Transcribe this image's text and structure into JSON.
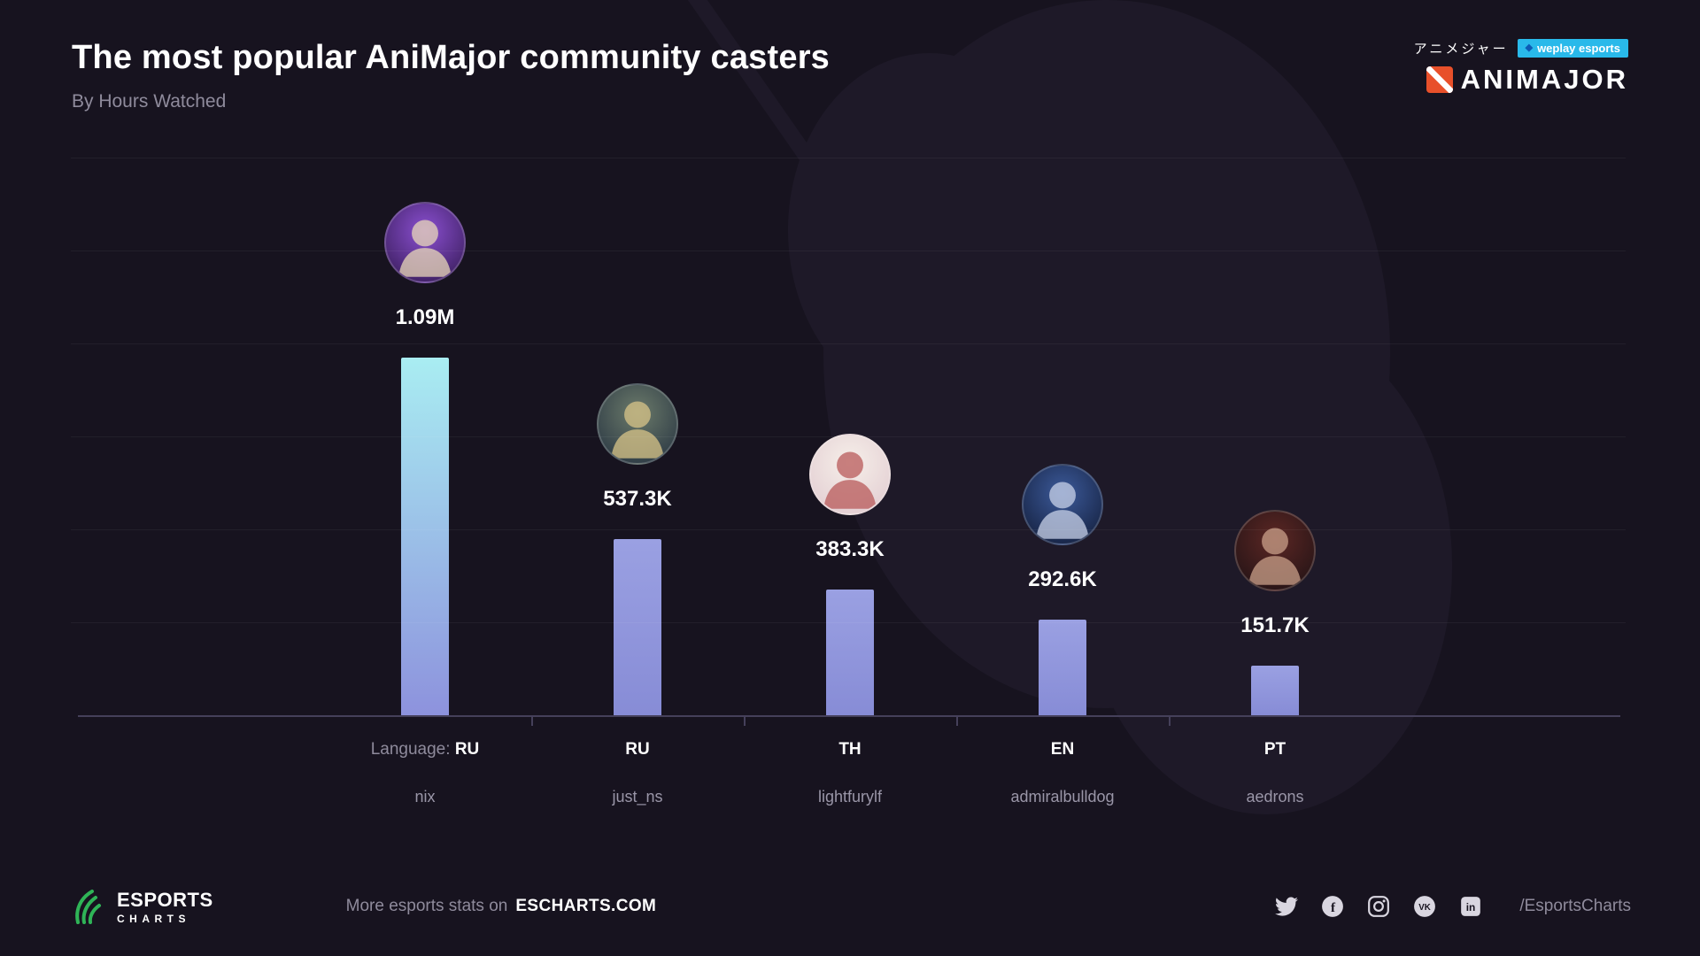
{
  "header": {
    "title": "The most popular AniMajor community casters",
    "subtitle": "By Hours Watched"
  },
  "branding": {
    "jp_text": "アニメジャー",
    "weplay_badge": "weplay esports",
    "animajor": "ANIMAJOR"
  },
  "colors": {
    "background": "#17131f",
    "accent_cyan": "#29b9ea",
    "animajor_orange": "#e8502a",
    "esports_green": "#2fb457",
    "bar_leader_top": "#a9edf2",
    "bar_leader_bottom": "#8d92dd",
    "bar_top": "#9aa0e2",
    "bar_bottom": "#878cd6",
    "axis_line": "#45405a",
    "text_muted": "#8f8b9c"
  },
  "chart_data": {
    "type": "bar",
    "title": "The most popular AniMajor community casters",
    "subtitle": "By Hours Watched",
    "ylabel": "Hours Watched",
    "ylim": [
      0,
      1090000
    ],
    "grid": "horizontal, faint",
    "legend": "none",
    "language_prefix": "Language:",
    "categories": [
      "nix",
      "just_ns",
      "lightfurylf",
      "admiralbulldog",
      "aedrons"
    ],
    "values": [
      1090000,
      537300,
      383300,
      292600,
      151700
    ],
    "casters": [
      {
        "name": "nix",
        "language": "RU",
        "value_label": "1.09M",
        "avatar_top": "#8a4fd0",
        "avatar_bottom": "#31184f",
        "figure": "#e9d9b8"
      },
      {
        "name": "just_ns",
        "language": "RU",
        "value_label": "537.3K",
        "avatar_top": "#6b7a6a",
        "avatar_bottom": "#23303f",
        "figure": "#d9c488"
      },
      {
        "name": "lightfurylf",
        "language": "TH",
        "value_label": "383.3K",
        "avatar_top": "#f6efe9",
        "avatar_bottom": "#e0c9cf",
        "figure": "#b85a5a"
      },
      {
        "name": "admiralbulldog",
        "language": "EN",
        "value_label": "292.6K",
        "avatar_top": "#3c5a9a",
        "avatar_bottom": "#101a35",
        "figure": "#c9d2e8"
      },
      {
        "name": "aedrons",
        "language": "PT",
        "value_label": "151.7K",
        "avatar_top": "#5c2724",
        "avatar_bottom": "#1d1114",
        "figure": "#caa08a"
      }
    ]
  },
  "footer": {
    "logo_line1": "ESPORTS",
    "logo_line2": "CHARTS",
    "stats_text": "More esports stats on",
    "site": "ESCHARTS.COM",
    "social_handle": "/EsportsCharts",
    "social_icons": [
      "twitter",
      "facebook",
      "instagram",
      "vk",
      "linkedin"
    ]
  }
}
